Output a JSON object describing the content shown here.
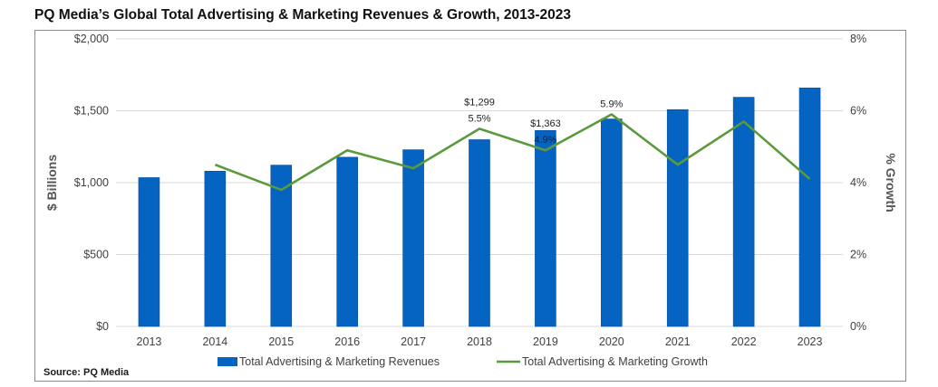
{
  "header": {
    "title": "PQ Media’s Global Total Advertising & Marketing Revenues & Growth, 2013-2023"
  },
  "footer": {
    "source": "Source: PQ Media"
  },
  "chart_data": {
    "type": "bar",
    "title": "PQ Media’s Global Total Advertising & Marketing Revenues & Growth, 2013-2023",
    "categories": [
      "2013",
      "2014",
      "2015",
      "2016",
      "2017",
      "2018",
      "2019",
      "2020",
      "2021",
      "2022",
      "2023"
    ],
    "ylabel": "$ Billions",
    "y2label": "% Growth",
    "ylim": [
      0,
      2000
    ],
    "y2lim": [
      0,
      8
    ],
    "yticks": [
      "$0",
      "$500",
      "$1,000",
      "$1,500",
      "$2,000"
    ],
    "y2ticks": [
      "0%",
      "2%",
      "4%",
      "6%",
      "8%"
    ],
    "grid": true,
    "legend_position": "bottom",
    "series": [
      {
        "name": "Total Advertising & Marketing Revenues",
        "type": "bar",
        "axis": "left",
        "color": "#0563C1",
        "values": [
          1035,
          1080,
          1122,
          1177,
          1229,
          1299,
          1363,
          1443,
          1508,
          1594,
          1659
        ]
      },
      {
        "name": "Total Advertising & Marketing Growth",
        "type": "line",
        "axis": "right",
        "color": "#5B9A3C",
        "values": [
          null,
          4.5,
          3.8,
          4.9,
          4.4,
          5.5,
          4.9,
          5.9,
          4.5,
          5.7,
          4.1
        ]
      }
    ],
    "annotations": [
      {
        "category": "2018",
        "bar_label": "$1,299",
        "line_label": "5.5%"
      },
      {
        "category": "2019",
        "bar_label": "$1,363",
        "line_label": "4.9%"
      },
      {
        "category": "2020",
        "line_label": "5.9%"
      }
    ]
  }
}
